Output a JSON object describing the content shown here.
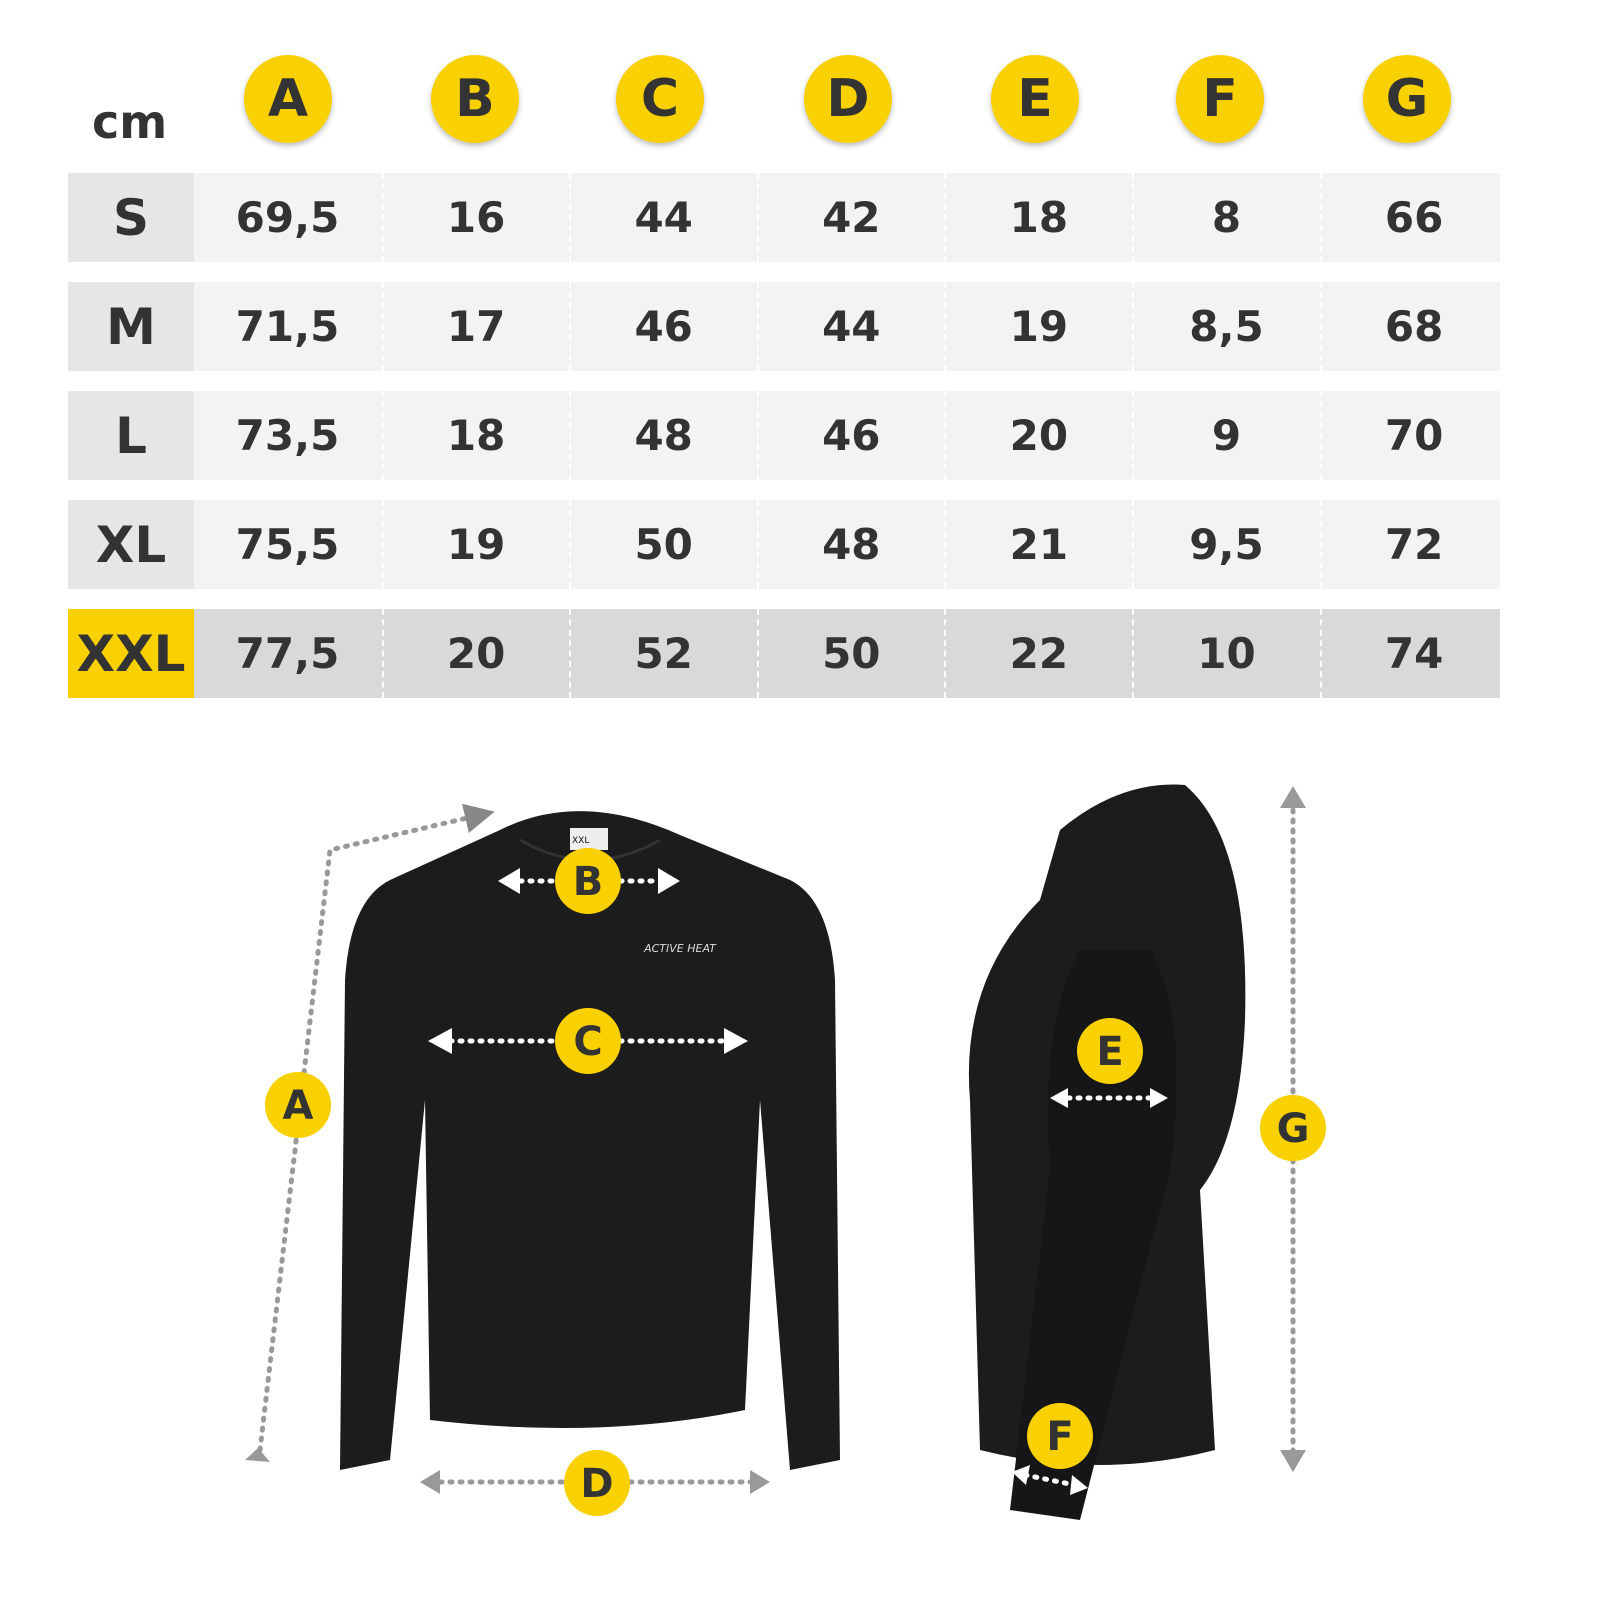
{
  "unit": "cm",
  "columns": [
    "A",
    "B",
    "C",
    "D",
    "E",
    "F",
    "G"
  ],
  "rows": [
    {
      "size": "S",
      "values": [
        "69,5",
        "16",
        "44",
        "42",
        "18",
        "8",
        "66"
      ]
    },
    {
      "size": "M",
      "values": [
        "71,5",
        "17",
        "46",
        "44",
        "19",
        "8,5",
        "68"
      ]
    },
    {
      "size": "L",
      "values": [
        "73,5",
        "18",
        "48",
        "46",
        "20",
        "9",
        "70"
      ]
    },
    {
      "size": "XL",
      "values": [
        "75,5",
        "19",
        "50",
        "48",
        "21",
        "9,5",
        "72"
      ]
    },
    {
      "size": "XXL",
      "values": [
        "77,5",
        "20",
        "52",
        "50",
        "22",
        "10",
        "74"
      ]
    }
  ],
  "highlighted_size": "XXL",
  "figure": {
    "front_labels": [
      "A",
      "B",
      "C",
      "D"
    ],
    "side_labels": [
      "E",
      "F",
      "G"
    ],
    "logo_text": "ACTIVE HEAT",
    "neck_tag": "XXL"
  },
  "colors": {
    "accent": "#f9d000",
    "text": "#333333",
    "row": "#f3f3f3",
    "row_highlight": "#d9d9d9",
    "shirt": "#1c1c1c"
  }
}
